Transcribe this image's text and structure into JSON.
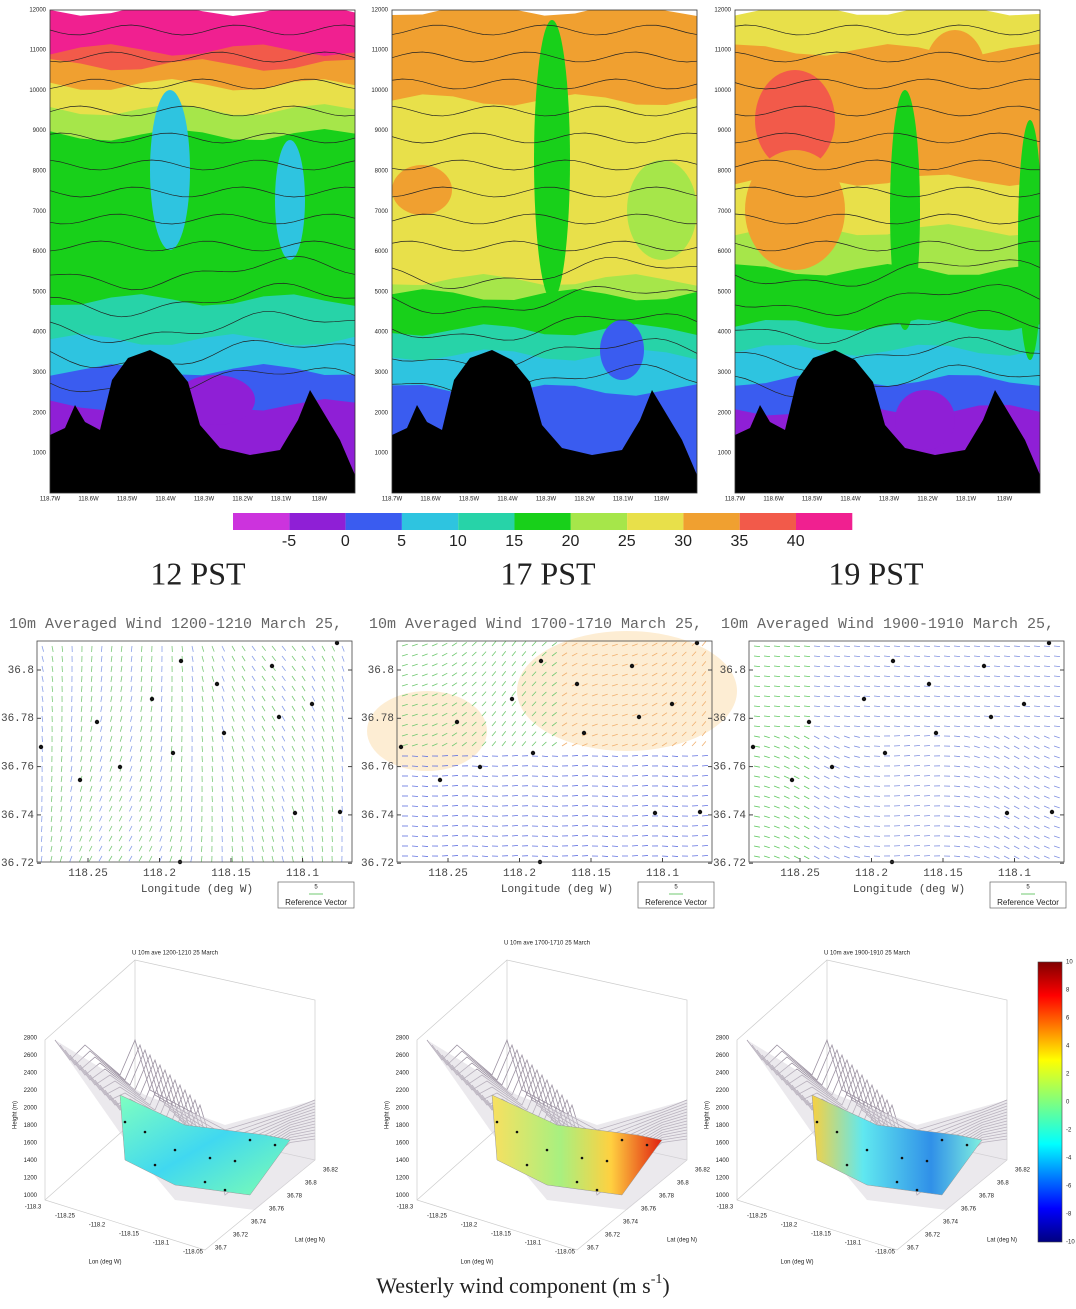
{
  "cross_sections": {
    "panels": [
      {
        "label": "12 PST"
      },
      {
        "label": "17 PST"
      },
      {
        "label": "19 PST"
      }
    ],
    "y_ticks": [
      "1000",
      "2000",
      "3000",
      "4000",
      "5000",
      "6000",
      "7000",
      "8000",
      "9000",
      "10000",
      "11000",
      "12000"
    ],
    "x_ticks": [
      "118.7W",
      "118.6W",
      "118.5W",
      "118.4W",
      "118.3W",
      "118.2W",
      "118.1W",
      "118W"
    ],
    "colorbar_ticks": [
      "-5",
      "0",
      "5",
      "10",
      "15",
      "20",
      "25",
      "30",
      "35",
      "40"
    ]
  },
  "wind_maps": {
    "panels": [
      {
        "title": "10m Averaged Wind 1200-1210 March 25,"
      },
      {
        "title": "10m Averaged Wind 1700-1710 March 25,"
      },
      {
        "title": "10m Averaged Wind 1900-1910 March 25,"
      }
    ],
    "y_ticks": [
      "36.8",
      "36.78",
      "36.76",
      "36.74",
      "36.72"
    ],
    "x_ticks": [
      "118.25",
      "118.2",
      "118.15",
      "118.1"
    ],
    "x_label": "Longitude (deg W)",
    "reference_value": "5",
    "reference_label": "Reference Vector"
  },
  "surface_plots": {
    "panels": [
      {
        "title": "U 10m ave 1200-1210 25 March"
      },
      {
        "title": "U 10m ave 1700-1710 25 March"
      },
      {
        "title": "U 10m ave 1900-1910 25 March"
      }
    ],
    "height_ticks": [
      "2800",
      "2600",
      "2400",
      "2200",
      "2000",
      "1800",
      "1600",
      "1400",
      "1200",
      "1000"
    ],
    "lon_ticks": [
      "-118.3",
      "-118.25",
      "-118.2",
      "-118.15",
      "-118.1",
      "-118.05"
    ],
    "lat_ticks": [
      "36.7",
      "36.72",
      "36.74",
      "36.76",
      "36.78",
      "36.8",
      "36.82"
    ],
    "y_label": "Height (m)",
    "x_label": "Lon (deg W)",
    "z_label": "Lat (deg N)",
    "colorbar_ticks": [
      "10",
      "8",
      "6",
      "4",
      "2",
      "0",
      "-2",
      "-4",
      "-6",
      "-8",
      "-10"
    ]
  },
  "caption": {
    "text": "Westerly wind component (m s",
    "superscript": "-1",
    "end": ")"
  }
}
